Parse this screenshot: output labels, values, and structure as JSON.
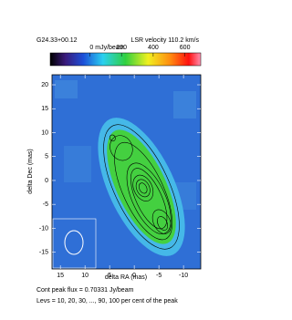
{
  "chart_data": {
    "type": "image",
    "title": "G24.33+00.12",
    "subtitle": "LSR velocity 110.2 km/s",
    "xlabel": "delta RA (mas)",
    "ylabel": "delta Dec (mas)",
    "xlim": [
      16.7,
      -13.5
    ],
    "ylim": [
      -18.5,
      22.1
    ],
    "xticks": [
      15,
      10,
      5,
      0,
      -5,
      -10
    ],
    "yticks": [
      20,
      15,
      10,
      5,
      0,
      -5,
      -10,
      -15
    ],
    "colorbar": {
      "lim": [
        -250,
        700
      ],
      "ticks": [
        {
          "value": 0,
          "label": "0 mJy/beam"
        },
        200,
        400,
        600
      ]
    },
    "notes": [
      "Cont peak flux =  0.70331 Jy/beam",
      "Levs = 10, 20, 30, ..., 90, 100 per cent of the peak"
    ]
  }
}
